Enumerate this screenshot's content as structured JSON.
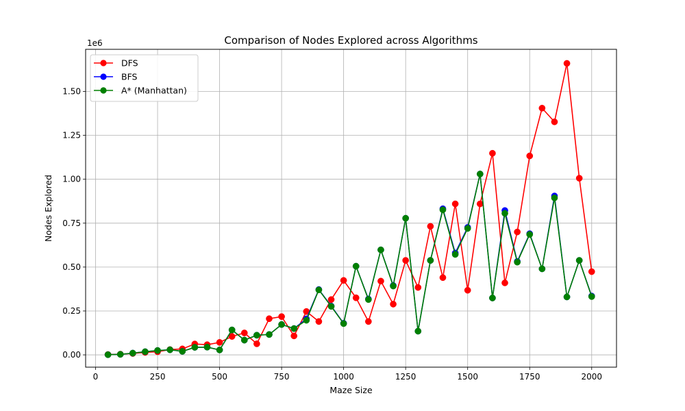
{
  "chart_data": {
    "type": "line",
    "title": "Comparison of Nodes Explored across Algorithms",
    "xlabel": "Maze Size",
    "ylabel": "Nodes Explored",
    "y_offset_label": "1e6",
    "xlim": [
      -40,
      2100
    ],
    "ylim": [
      -0.07,
      1.74
    ],
    "grid": true,
    "legend_position": "top-left",
    "x_ticks": [
      0,
      250,
      500,
      750,
      1000,
      1250,
      1500,
      1750,
      2000
    ],
    "x_tick_labels": [
      "0",
      "250",
      "500",
      "750",
      "1000",
      "1250",
      "1500",
      "1750",
      "2000"
    ],
    "y_ticks": [
      0,
      0.25,
      0.5,
      0.75,
      1.0,
      1.25,
      1.5
    ],
    "y_tick_labels": [
      "0.00",
      "0.25",
      "0.50",
      "0.75",
      "1.00",
      "1.25",
      "1.50"
    ],
    "x": [
      50,
      100,
      150,
      200,
      250,
      300,
      350,
      400,
      450,
      500,
      550,
      600,
      650,
      700,
      750,
      800,
      850,
      900,
      950,
      1000,
      1050,
      1100,
      1150,
      1200,
      1250,
      1300,
      1350,
      1400,
      1450,
      1500,
      1550,
      1600,
      1650,
      1700,
      1750,
      1800,
      1850,
      1900,
      1950,
      2000
    ],
    "series": [
      {
        "name": "DFS",
        "color": "#ff0000",
        "values": [
          0.002,
          0.004,
          0.008,
          0.014,
          0.018,
          0.03,
          0.034,
          0.062,
          0.058,
          0.071,
          0.105,
          0.125,
          0.063,
          0.206,
          0.218,
          0.108,
          0.247,
          0.19,
          0.315,
          0.424,
          0.325,
          0.19,
          0.42,
          0.289,
          0.538,
          0.384,
          0.732,
          0.44,
          0.86,
          0.368,
          0.86,
          1.148,
          0.41,
          0.7,
          1.133,
          1.405,
          1.327,
          1.66,
          1.006,
          0.474
        ]
      },
      {
        "name": "BFS",
        "color": "#0000ff",
        "values": [
          0.001,
          0.003,
          0.01,
          0.018,
          0.025,
          0.029,
          0.02,
          0.043,
          0.044,
          0.028,
          0.142,
          0.084,
          0.112,
          0.116,
          0.173,
          0.15,
          0.205,
          0.372,
          0.278,
          0.18,
          0.505,
          0.318,
          0.598,
          0.395,
          0.778,
          0.135,
          0.538,
          0.832,
          0.58,
          0.726,
          1.03,
          0.324,
          0.822,
          0.532,
          0.69,
          0.49,
          0.905,
          0.33,
          0.538,
          0.335
        ]
      },
      {
        "name": "A* (Manhattan)",
        "color": "#008000",
        "values": [
          0.001,
          0.003,
          0.01,
          0.018,
          0.025,
          0.029,
          0.02,
          0.043,
          0.044,
          0.028,
          0.142,
          0.084,
          0.112,
          0.116,
          0.173,
          0.15,
          0.197,
          0.37,
          0.276,
          0.178,
          0.505,
          0.315,
          0.598,
          0.392,
          0.778,
          0.135,
          0.538,
          0.826,
          0.572,
          0.72,
          1.03,
          0.324,
          0.806,
          0.528,
          0.686,
          0.49,
          0.894,
          0.33,
          0.538,
          0.332
        ]
      }
    ]
  }
}
